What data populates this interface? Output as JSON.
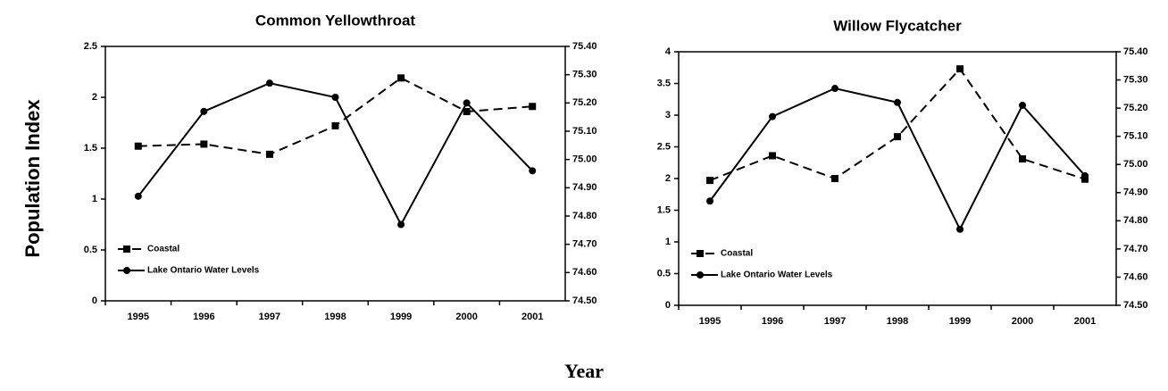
{
  "ylabel": "Population Index",
  "xlabel": "Year",
  "chart_data": [
    {
      "type": "line",
      "title": "Common Yellowthroat",
      "categories": [
        "1995",
        "1996",
        "1997",
        "1998",
        "1999",
        "2000",
        "2001"
      ],
      "ylim": [
        0,
        2.5
      ],
      "yticks": [
        0,
        0.5,
        1,
        1.5,
        2,
        2.5
      ],
      "y2lim": [
        74.5,
        75.4
      ],
      "y2ticks": [
        {
          "value": 74.5,
          "label": "74.50"
        },
        {
          "value": 74.6,
          "label": "74.60"
        },
        {
          "value": 74.7,
          "label": "74.70"
        },
        {
          "value": 74.8,
          "label": "74.80"
        },
        {
          "value": 74.9,
          "label": "74.90"
        },
        {
          "value": 75.0,
          "label": "75.00"
        },
        {
          "value": 75.1,
          "label": "75.10"
        },
        {
          "value": 75.2,
          "label": "75.20"
        },
        {
          "value": 75.3,
          "label": "75.30"
        },
        {
          "value": 75.4,
          "label": "75.40"
        }
      ],
      "legend": "lower left",
      "series": [
        {
          "name": "Coastal",
          "color": "#000000",
          "dashed": true,
          "marker": "square",
          "values": [
            1.52,
            1.54,
            1.44,
            1.72,
            2.19,
            1.86,
            1.91
          ]
        },
        {
          "name": "Lake Ontario Water Levels",
          "color": "#000000",
          "dashed": false,
          "marker": "circle",
          "axis": "y2",
          "values": [
            74.87,
            75.17,
            75.27,
            75.22,
            74.77,
            75.2,
            74.96
          ]
        }
      ]
    },
    {
      "type": "line",
      "title": "Willow Flycatcher",
      "categories": [
        "1995",
        "1996",
        "1997",
        "1998",
        "1999",
        "2000",
        "2001"
      ],
      "ylim": [
        0,
        4
      ],
      "yticks": [
        0,
        0.5,
        1,
        1.5,
        2,
        2.5,
        3,
        3.5,
        4
      ],
      "y2lim": [
        74.5,
        75.4
      ],
      "y2ticks": [
        {
          "value": 74.5,
          "label": "74.50"
        },
        {
          "value": 74.6,
          "label": "74.60"
        },
        {
          "value": 74.7,
          "label": "74.70"
        },
        {
          "value": 74.8,
          "label": "74.80"
        },
        {
          "value": 74.9,
          "label": "74.90"
        },
        {
          "value": 75.0,
          "label": "75.00"
        },
        {
          "value": 75.1,
          "label": "75.10"
        },
        {
          "value": 75.2,
          "label": "75.20"
        },
        {
          "value": 75.3,
          "label": "75.30"
        },
        {
          "value": 75.4,
          "label": "75.40"
        }
      ],
      "legend": "lower left",
      "series": [
        {
          "name": "Coastal",
          "color": "#000000",
          "dashed": true,
          "marker": "square",
          "values": [
            1.97,
            2.36,
            2.0,
            2.66,
            3.73,
            2.31,
            1.99
          ]
        },
        {
          "name": "Lake Ontario Water Levels",
          "color": "#000000",
          "dashed": false,
          "marker": "circle",
          "axis": "y2",
          "values": [
            74.87,
            75.17,
            75.27,
            75.22,
            74.77,
            75.21,
            74.96
          ]
        }
      ]
    }
  ]
}
